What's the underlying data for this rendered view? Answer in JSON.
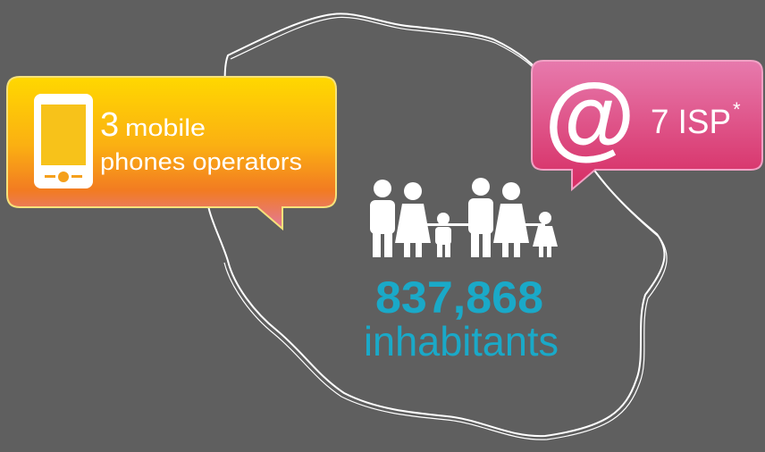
{
  "left_bubble": {
    "number": "3",
    "line1": "mobile",
    "line2": "phones operators"
  },
  "right_bubble": {
    "icon": "@",
    "text": "7 ISP",
    "mark": "*"
  },
  "population": {
    "value": "837,868",
    "label": "inhabitants"
  }
}
